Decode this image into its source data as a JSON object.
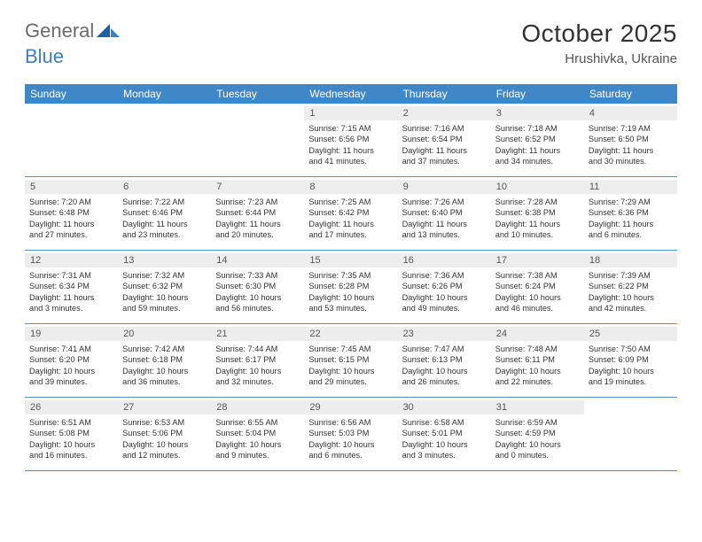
{
  "brand": {
    "word1": "General",
    "word2": "Blue",
    "word1_color": "#6b6b6b",
    "word2_color": "#3b7fc4"
  },
  "title": "October 2025",
  "location": "Hrushivka, Ukraine",
  "colors": {
    "header_bg": "#3f87c7",
    "header_text": "#ffffff",
    "daynum_bg": "#ededed",
    "row_border": "#5a8fc2",
    "text": "#333333"
  },
  "weekdays": [
    "Sunday",
    "Monday",
    "Tuesday",
    "Wednesday",
    "Thursday",
    "Friday",
    "Saturday"
  ],
  "weeks": [
    [
      {
        "empty": true
      },
      {
        "empty": true
      },
      {
        "empty": true
      },
      {
        "num": "1",
        "sunrise": "Sunrise: 7:15 AM",
        "sunset": "Sunset: 6:56 PM",
        "day1": "Daylight: 11 hours",
        "day2": "and 41 minutes."
      },
      {
        "num": "2",
        "sunrise": "Sunrise: 7:16 AM",
        "sunset": "Sunset: 6:54 PM",
        "day1": "Daylight: 11 hours",
        "day2": "and 37 minutes."
      },
      {
        "num": "3",
        "sunrise": "Sunrise: 7:18 AM",
        "sunset": "Sunset: 6:52 PM",
        "day1": "Daylight: 11 hours",
        "day2": "and 34 minutes."
      },
      {
        "num": "4",
        "sunrise": "Sunrise: 7:19 AM",
        "sunset": "Sunset: 6:50 PM",
        "day1": "Daylight: 11 hours",
        "day2": "and 30 minutes."
      }
    ],
    [
      {
        "num": "5",
        "sunrise": "Sunrise: 7:20 AM",
        "sunset": "Sunset: 6:48 PM",
        "day1": "Daylight: 11 hours",
        "day2": "and 27 minutes."
      },
      {
        "num": "6",
        "sunrise": "Sunrise: 7:22 AM",
        "sunset": "Sunset: 6:46 PM",
        "day1": "Daylight: 11 hours",
        "day2": "and 23 minutes."
      },
      {
        "num": "7",
        "sunrise": "Sunrise: 7:23 AM",
        "sunset": "Sunset: 6:44 PM",
        "day1": "Daylight: 11 hours",
        "day2": "and 20 minutes."
      },
      {
        "num": "8",
        "sunrise": "Sunrise: 7:25 AM",
        "sunset": "Sunset: 6:42 PM",
        "day1": "Daylight: 11 hours",
        "day2": "and 17 minutes."
      },
      {
        "num": "9",
        "sunrise": "Sunrise: 7:26 AM",
        "sunset": "Sunset: 6:40 PM",
        "day1": "Daylight: 11 hours",
        "day2": "and 13 minutes."
      },
      {
        "num": "10",
        "sunrise": "Sunrise: 7:28 AM",
        "sunset": "Sunset: 6:38 PM",
        "day1": "Daylight: 11 hours",
        "day2": "and 10 minutes."
      },
      {
        "num": "11",
        "sunrise": "Sunrise: 7:29 AM",
        "sunset": "Sunset: 6:36 PM",
        "day1": "Daylight: 11 hours",
        "day2": "and 6 minutes."
      }
    ],
    [
      {
        "num": "12",
        "sunrise": "Sunrise: 7:31 AM",
        "sunset": "Sunset: 6:34 PM",
        "day1": "Daylight: 11 hours",
        "day2": "and 3 minutes."
      },
      {
        "num": "13",
        "sunrise": "Sunrise: 7:32 AM",
        "sunset": "Sunset: 6:32 PM",
        "day1": "Daylight: 10 hours",
        "day2": "and 59 minutes."
      },
      {
        "num": "14",
        "sunrise": "Sunrise: 7:33 AM",
        "sunset": "Sunset: 6:30 PM",
        "day1": "Daylight: 10 hours",
        "day2": "and 56 minutes."
      },
      {
        "num": "15",
        "sunrise": "Sunrise: 7:35 AM",
        "sunset": "Sunset: 6:28 PM",
        "day1": "Daylight: 10 hours",
        "day2": "and 53 minutes."
      },
      {
        "num": "16",
        "sunrise": "Sunrise: 7:36 AM",
        "sunset": "Sunset: 6:26 PM",
        "day1": "Daylight: 10 hours",
        "day2": "and 49 minutes."
      },
      {
        "num": "17",
        "sunrise": "Sunrise: 7:38 AM",
        "sunset": "Sunset: 6:24 PM",
        "day1": "Daylight: 10 hours",
        "day2": "and 46 minutes."
      },
      {
        "num": "18",
        "sunrise": "Sunrise: 7:39 AM",
        "sunset": "Sunset: 6:22 PM",
        "day1": "Daylight: 10 hours",
        "day2": "and 42 minutes."
      }
    ],
    [
      {
        "num": "19",
        "sunrise": "Sunrise: 7:41 AM",
        "sunset": "Sunset: 6:20 PM",
        "day1": "Daylight: 10 hours",
        "day2": "and 39 minutes."
      },
      {
        "num": "20",
        "sunrise": "Sunrise: 7:42 AM",
        "sunset": "Sunset: 6:18 PM",
        "day1": "Daylight: 10 hours",
        "day2": "and 36 minutes."
      },
      {
        "num": "21",
        "sunrise": "Sunrise: 7:44 AM",
        "sunset": "Sunset: 6:17 PM",
        "day1": "Daylight: 10 hours",
        "day2": "and 32 minutes."
      },
      {
        "num": "22",
        "sunrise": "Sunrise: 7:45 AM",
        "sunset": "Sunset: 6:15 PM",
        "day1": "Daylight: 10 hours",
        "day2": "and 29 minutes."
      },
      {
        "num": "23",
        "sunrise": "Sunrise: 7:47 AM",
        "sunset": "Sunset: 6:13 PM",
        "day1": "Daylight: 10 hours",
        "day2": "and 26 minutes."
      },
      {
        "num": "24",
        "sunrise": "Sunrise: 7:48 AM",
        "sunset": "Sunset: 6:11 PM",
        "day1": "Daylight: 10 hours",
        "day2": "and 22 minutes."
      },
      {
        "num": "25",
        "sunrise": "Sunrise: 7:50 AM",
        "sunset": "Sunset: 6:09 PM",
        "day1": "Daylight: 10 hours",
        "day2": "and 19 minutes."
      }
    ],
    [
      {
        "num": "26",
        "sunrise": "Sunrise: 6:51 AM",
        "sunset": "Sunset: 5:08 PM",
        "day1": "Daylight: 10 hours",
        "day2": "and 16 minutes."
      },
      {
        "num": "27",
        "sunrise": "Sunrise: 6:53 AM",
        "sunset": "Sunset: 5:06 PM",
        "day1": "Daylight: 10 hours",
        "day2": "and 12 minutes."
      },
      {
        "num": "28",
        "sunrise": "Sunrise: 6:55 AM",
        "sunset": "Sunset: 5:04 PM",
        "day1": "Daylight: 10 hours",
        "day2": "and 9 minutes."
      },
      {
        "num": "29",
        "sunrise": "Sunrise: 6:56 AM",
        "sunset": "Sunset: 5:03 PM",
        "day1": "Daylight: 10 hours",
        "day2": "and 6 minutes."
      },
      {
        "num": "30",
        "sunrise": "Sunrise: 6:58 AM",
        "sunset": "Sunset: 5:01 PM",
        "day1": "Daylight: 10 hours",
        "day2": "and 3 minutes."
      },
      {
        "num": "31",
        "sunrise": "Sunrise: 6:59 AM",
        "sunset": "Sunset: 4:59 PM",
        "day1": "Daylight: 10 hours",
        "day2": "and 0 minutes."
      },
      {
        "empty": true
      }
    ]
  ]
}
